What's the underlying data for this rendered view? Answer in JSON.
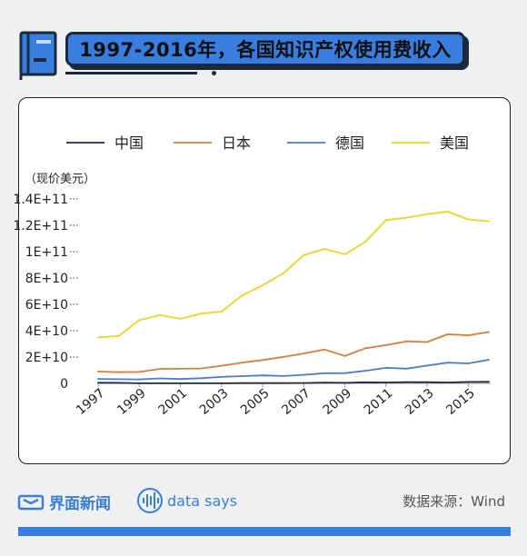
{
  "header": {
    "title": "1997-2016年，各国知识产权使用费收入"
  },
  "chart_data": {
    "type": "line",
    "unit_label": "（现价美元）",
    "x": [
      1997,
      1998,
      1999,
      2000,
      2001,
      2002,
      2003,
      2004,
      2005,
      2006,
      2007,
      2008,
      2009,
      2010,
      2011,
      2012,
      2013,
      2014,
      2015,
      2016
    ],
    "x_tick_labels": [
      "1997",
      "1999",
      "2001",
      "2003",
      "2005",
      "2007",
      "2009",
      "2011",
      "2013",
      "2015"
    ],
    "y_tick_labels": [
      "0",
      "2E+10",
      "4E+10",
      "6E+10",
      "8E+10",
      "1E+11",
      "1.2E+11",
      "1.4E+11"
    ],
    "ylim": [
      0,
      140000000000
    ],
    "grid": false,
    "legend_position": "top",
    "series": [
      {
        "name": "中国",
        "color": "#1c2a44",
        "values": [
          500000000,
          400000000,
          100000000,
          100000000,
          100000000,
          100000000,
          100000000,
          200000000,
          200000000,
          200000000,
          300000000,
          600000000,
          400000000,
          800000000,
          700000000,
          1000000000,
          900000000,
          700000000,
          1100000000,
          1200000000
        ]
      },
      {
        "name": "日本",
        "color": "#e07a35",
        "values": [
          9000000000,
          8500000000,
          8700000000,
          11000000000,
          11100000000,
          11300000000,
          13400000000,
          15700000000,
          17700000000,
          20100000000,
          22700000000,
          25700000000,
          20800000000,
          26700000000,
          29000000000,
          31900000000,
          31400000000,
          37300000000,
          36500000000,
          39000000000
        ]
      },
      {
        "name": "德国",
        "color": "#4a7cc7",
        "values": [
          3400000000,
          3200000000,
          3000000000,
          3800000000,
          3300000000,
          3900000000,
          4900000000,
          5500000000,
          6100000000,
          5600000000,
          6500000000,
          7700000000,
          7800000000,
          9600000000,
          11800000000,
          11200000000,
          13500000000,
          15700000000,
          15200000000,
          17900000000
        ]
      },
      {
        "name": "美国",
        "color": "#f5d11c",
        "values": [
          35000000000,
          36000000000,
          48000000000,
          51800000000,
          49000000000,
          53000000000,
          54500000000,
          66700000000,
          74500000000,
          83500000000,
          97300000000,
          102100000000,
          98000000000,
          107500000000,
          124000000000,
          125800000000,
          128500000000,
          130400000000,
          124400000000,
          123100000000
        ]
      }
    ]
  },
  "footer": {
    "brand_name": "界面新闻",
    "data_says": "data says",
    "source": "数据来源：Wind"
  }
}
